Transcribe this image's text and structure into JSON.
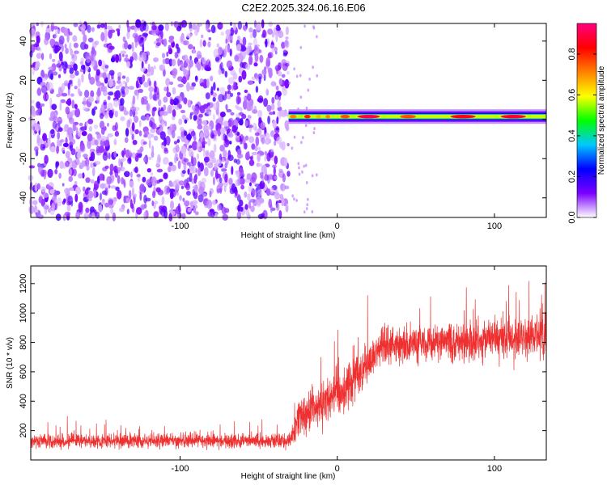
{
  "title": "C2E2.2025.324.06.16.E06",
  "colorbar": {
    "label": "Normalized spectral amplitude",
    "ticks": [
      "0.0",
      "0.2",
      "0.4",
      "0.6",
      "0.8"
    ],
    "colors": [
      "#ffffff",
      "#7b00ff",
      "#0000ff",
      "#00c8ff",
      "#00ff00",
      "#ffff00",
      "#ff8000",
      "#ff0000",
      "#ff007f"
    ]
  },
  "chart_data": [
    {
      "type": "heatmap",
      "xlabel": "Height of straight line (km)",
      "ylabel": "Frequency (Hz)",
      "xlim": [
        -195,
        133
      ],
      "ylim": [
        -50,
        49
      ],
      "xticks": [
        -100,
        0,
        100
      ],
      "xtick_labels": [
        "-100",
        "0",
        "100"
      ],
      "yticks": [
        -40,
        -20,
        0,
        20,
        40
      ],
      "ytick_labels": [
        "-40",
        "-20",
        "0",
        "20",
        "40"
      ],
      "zrange": [
        0,
        0.95
      ],
      "regions": [
        {
          "x_range": [
            -195,
            -31
          ],
          "f_range": [
            -50,
            49
          ],
          "pattern": "broadband speckle",
          "amplitude": "0.05-0.25"
        },
        {
          "x_range": [
            -31,
            133
          ],
          "f_center": 1.5,
          "f_halfwidth": 2,
          "pattern": "narrow band near 0-3 Hz",
          "amplitude": "0.4-0.95"
        }
      ]
    },
    {
      "type": "line",
      "xlabel": "Height of straight line (km)",
      "ylabel": "SNR (10 * v/v)",
      "xlim": [
        -195,
        133
      ],
      "ylim": [
        0,
        1320
      ],
      "xticks": [
        -100,
        0,
        100
      ],
      "xtick_labels": [
        "-100",
        "0",
        "100"
      ],
      "yticks": [
        200,
        400,
        600,
        800,
        1000,
        1200
      ],
      "ytick_labels": [
        "200",
        "400",
        "600",
        "800",
        "1000",
        "1200"
      ],
      "color": "#ee3030",
      "trend": {
        "x": [
          -195,
          -30,
          -25,
          0,
          30,
          60,
          133
        ],
        "mean": [
          130,
          130,
          280,
          450,
          780,
          800,
          850
        ],
        "spread": [
          60,
          60,
          170,
          200,
          170,
          160,
          190
        ]
      }
    }
  ]
}
